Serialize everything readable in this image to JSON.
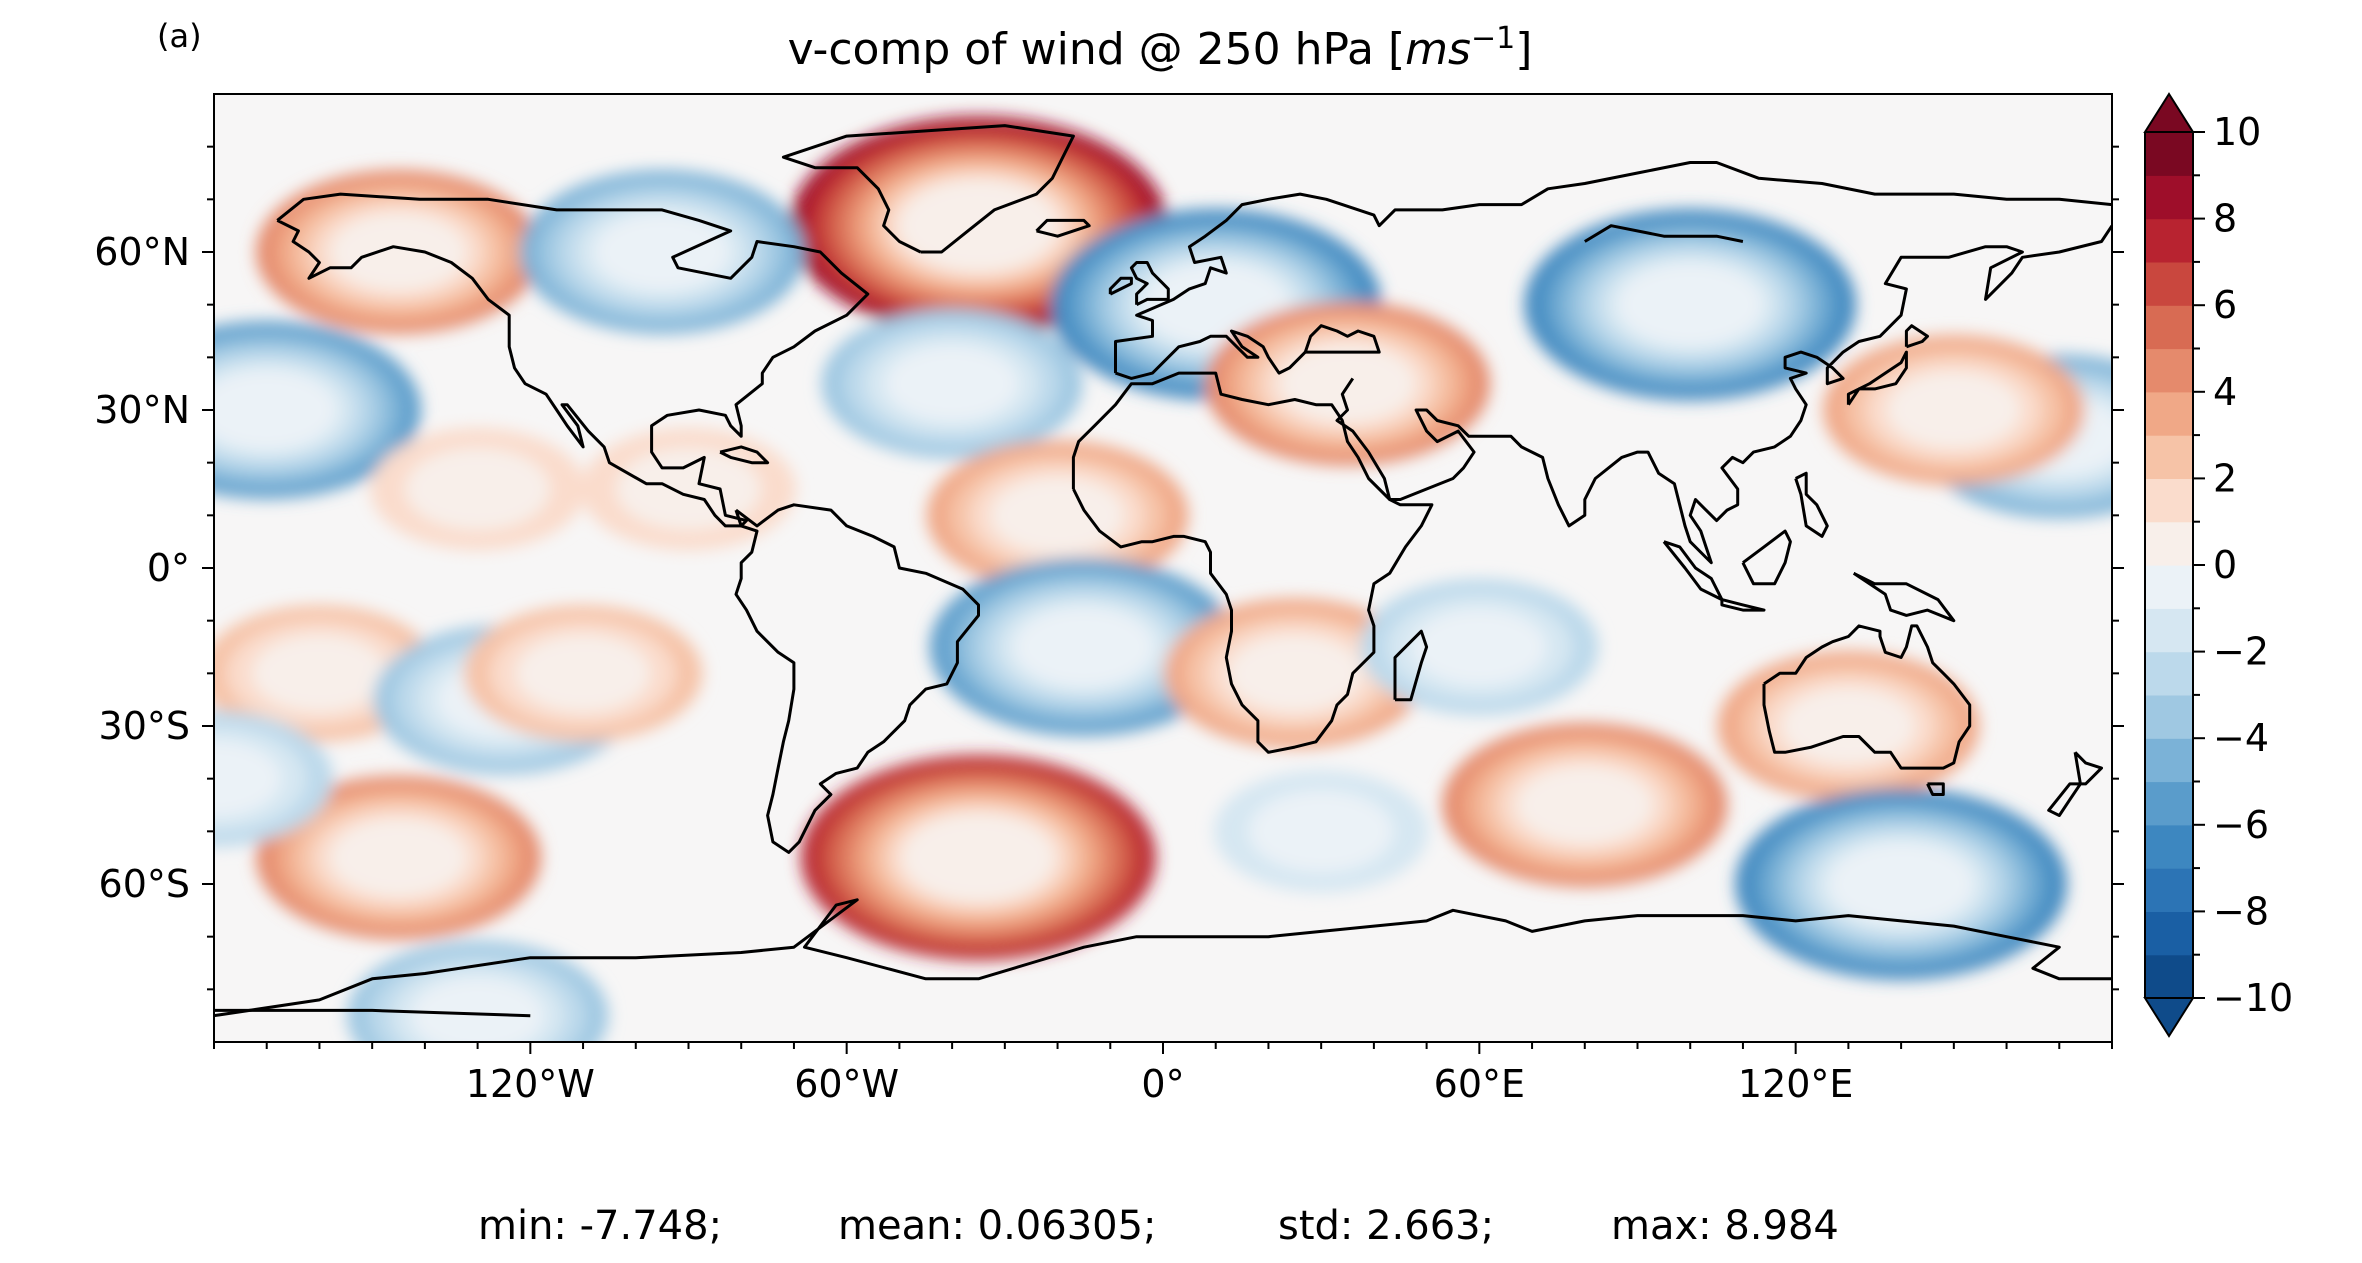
{
  "panel_label": "(a)",
  "title": "v-comp of wind @ 250 hPa [",
  "title_unit_base": "ms",
  "title_unit_exp": "−1",
  "title_close": "]",
  "stats": {
    "min": "min: -7.748;",
    "mean": "mean: 0.06305;",
    "std": "std: 2.663;",
    "max": "max: 8.984"
  },
  "chart_data": {
    "type": "heatmap",
    "projection": "PlateCarree",
    "variable": "v-comp of wind @ 250 hPa",
    "units": "m s^-1",
    "lon_range": [
      -180,
      180
    ],
    "lat_range": [
      -90,
      90
    ],
    "x_ticks": [
      -120,
      -60,
      0,
      60,
      120
    ],
    "x_tick_labels": [
      "120°W",
      "60°W",
      "0°",
      "60°E",
      "120°E"
    ],
    "y_ticks": [
      60,
      30,
      0,
      -30,
      -60
    ],
    "y_tick_labels": [
      "60°N",
      "30°N",
      "0°",
      "30°S",
      "60°S"
    ],
    "colorbar": {
      "cmap": "RdBu_r",
      "vmin": -10,
      "vmax": 10,
      "step": 1,
      "extend": "both",
      "tick_values": [
        10,
        8,
        6,
        4,
        2,
        0,
        -2,
        -4,
        -6,
        -8,
        -10
      ],
      "tick_labels": [
        "10",
        "8",
        "6",
        "4",
        "2",
        "0",
        "−2",
        "−4",
        "−6",
        "−8",
        "−10"
      ]
    },
    "anomalies": [
      {
        "lon": -145,
        "lat": 60,
        "value": 5
      },
      {
        "lon": -35,
        "lat": 65,
        "value": 9
      },
      {
        "lon": -95,
        "lat": 60,
        "value": -5
      },
      {
        "lon": 10,
        "lat": 50,
        "value": -7
      },
      {
        "lon": 35,
        "lat": 35,
        "value": 5
      },
      {
        "lon": 100,
        "lat": 50,
        "value": -7
      },
      {
        "lon": -170,
        "lat": 30,
        "value": -6
      },
      {
        "lon": -40,
        "lat": 35,
        "value": -4
      },
      {
        "lon": 170,
        "lat": 25,
        "value": -5
      },
      {
        "lon": 150,
        "lat": 30,
        "value": 4
      },
      {
        "lon": -20,
        "lat": 10,
        "value": 4
      },
      {
        "lon": -90,
        "lat": 15,
        "value": 2
      },
      {
        "lon": -130,
        "lat": 15,
        "value": 2
      },
      {
        "lon": -15,
        "lat": -15,
        "value": -6
      },
      {
        "lon": 25,
        "lat": -20,
        "value": 4
      },
      {
        "lon": 60,
        "lat": -15,
        "value": -3
      },
      {
        "lon": 130,
        "lat": -30,
        "value": 4
      },
      {
        "lon": -160,
        "lat": -20,
        "value": 3
      },
      {
        "lon": -125,
        "lat": -25,
        "value": -4
      },
      {
        "lon": -110,
        "lat": -20,
        "value": 3
      },
      {
        "lon": -145,
        "lat": -55,
        "value": 5
      },
      {
        "lon": -35,
        "lat": -55,
        "value": 8
      },
      {
        "lon": 80,
        "lat": -45,
        "value": 5
      },
      {
        "lon": 140,
        "lat": -60,
        "value": -7
      },
      {
        "lon": -130,
        "lat": -85,
        "value": -4
      },
      {
        "lon": 30,
        "lat": -50,
        "value": -2
      },
      {
        "lon": -180,
        "lat": -40,
        "value": -3
      }
    ]
  }
}
